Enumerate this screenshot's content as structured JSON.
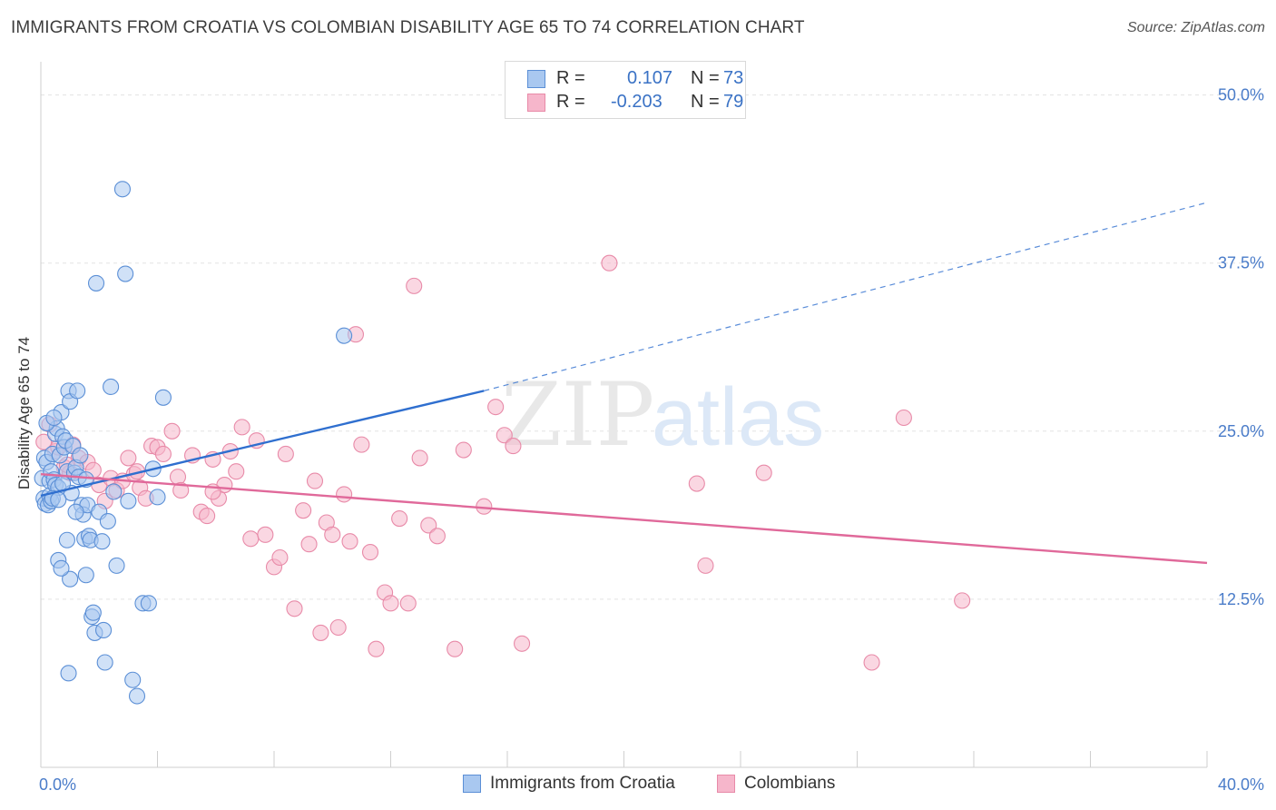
{
  "title": "IMMIGRANTS FROM CROATIA VS COLOMBIAN DISABILITY AGE 65 TO 74 CORRELATION CHART",
  "source": "Source: ZipAtlas.com",
  "watermark": {
    "zip": "ZIP",
    "atlas": "atlas"
  },
  "colors": {
    "blue_fill": "#a9c8f0",
    "blue_stroke": "#5b8fd6",
    "blue_line": "#2f6fcf",
    "pink_fill": "#f6b6cb",
    "pink_stroke": "#e88aa8",
    "pink_line": "#e0699a",
    "tick_label": "#4a7cc9",
    "grid": "#e3e3e3"
  },
  "legend": {
    "rows": [
      {
        "r_label": "R =",
        "r_value": "0.107",
        "n_label": "N =",
        "n_value": "73"
      },
      {
        "r_label": "R =",
        "r_value": "-0.203",
        "n_label": "N =",
        "n_value": "79"
      }
    ]
  },
  "bottom_legend": [
    {
      "label": "Immigrants from Croatia"
    },
    {
      "label": "Colombians"
    }
  ],
  "chart_data": {
    "type": "scatter",
    "title": "IMMIGRANTS FROM CROATIA VS COLOMBIAN DISABILITY AGE 65 TO 74 CORRELATION CHART",
    "xlabel": "",
    "ylabel": "Disability Age 65 to 74",
    "xlim": [
      0,
      40
    ],
    "ylim": [
      0,
      52
    ],
    "x_tick_labels": [
      {
        "value": 0,
        "label": "0.0%"
      },
      {
        "value": 40,
        "label": "40.0%"
      }
    ],
    "x_minor_ticks": [
      0,
      4,
      8,
      12,
      16,
      20,
      24,
      28,
      32,
      36,
      40
    ],
    "y_ticks": [
      {
        "value": 12.5,
        "label": "12.5%"
      },
      {
        "value": 25,
        "label": "25.0%"
      },
      {
        "value": 37.5,
        "label": "37.5%"
      },
      {
        "value": 50,
        "label": "50.0%"
      }
    ],
    "series": [
      {
        "name": "Immigrants from Croatia",
        "R": 0.107,
        "N": 73,
        "trend": {
          "x0": 0,
          "y0": 20.2,
          "x1": 15.2,
          "y1": 28.0,
          "dash_x1": 40,
          "dash_y1": 42.0
        },
        "points": [
          [
            0.05,
            21.5
          ],
          [
            0.1,
            20.0
          ],
          [
            0.12,
            23.0
          ],
          [
            0.15,
            19.6
          ],
          [
            0.2,
            22.7
          ],
          [
            0.25,
            19.5
          ],
          [
            0.3,
            21.3
          ],
          [
            0.3,
            20.2
          ],
          [
            0.35,
            22.0
          ],
          [
            0.35,
            19.8
          ],
          [
            0.4,
            23.3
          ],
          [
            0.45,
            21.4
          ],
          [
            0.5,
            24.8
          ],
          [
            0.5,
            21.0
          ],
          [
            0.55,
            25.2
          ],
          [
            0.6,
            20.8
          ],
          [
            0.65,
            23.2
          ],
          [
            0.7,
            26.4
          ],
          [
            0.75,
            24.6
          ],
          [
            0.8,
            23.8
          ],
          [
            0.85,
            24.3
          ],
          [
            0.9,
            22.0
          ],
          [
            0.95,
            28.0
          ],
          [
            1.0,
            27.2
          ],
          [
            1.05,
            20.4
          ],
          [
            1.1,
            23.9
          ],
          [
            1.15,
            21.9
          ],
          [
            1.2,
            22.3
          ],
          [
            1.25,
            28.0
          ],
          [
            1.3,
            21.6
          ],
          [
            1.4,
            19.5
          ],
          [
            1.45,
            18.8
          ],
          [
            1.5,
            17.0
          ],
          [
            1.55,
            14.3
          ],
          [
            1.6,
            19.5
          ],
          [
            1.65,
            17.2
          ],
          [
            1.7,
            16.9
          ],
          [
            1.75,
            11.2
          ],
          [
            1.8,
            11.5
          ],
          [
            1.85,
            10.0
          ],
          [
            1.9,
            36.0
          ],
          [
            2.0,
            19.0
          ],
          [
            2.1,
            16.8
          ],
          [
            2.15,
            10.2
          ],
          [
            2.2,
            7.8
          ],
          [
            2.3,
            18.3
          ],
          [
            2.4,
            28.3
          ],
          [
            2.5,
            20.5
          ],
          [
            2.6,
            15.0
          ],
          [
            2.8,
            43.0
          ],
          [
            2.9,
            36.7
          ],
          [
            3.0,
            19.8
          ],
          [
            3.15,
            6.5
          ],
          [
            3.3,
            5.3
          ],
          [
            3.5,
            12.2
          ],
          [
            3.7,
            12.2
          ],
          [
            3.85,
            22.2
          ],
          [
            4.0,
            20.1
          ],
          [
            4.2,
            27.5
          ],
          [
            0.6,
            15.4
          ],
          [
            0.9,
            16.9
          ],
          [
            1.0,
            14.0
          ],
          [
            0.7,
            14.8
          ],
          [
            0.95,
            7.0
          ],
          [
            1.35,
            23.2
          ],
          [
            1.55,
            21.4
          ],
          [
            10.4,
            32.1
          ],
          [
            0.4,
            20.0
          ],
          [
            0.2,
            25.6
          ],
          [
            0.6,
            19.9
          ],
          [
            0.75,
            21.1
          ],
          [
            1.2,
            19.0
          ],
          [
            0.45,
            26.0
          ]
        ]
      },
      {
        "name": "Colombians",
        "R": -0.203,
        "N": 79,
        "trend": {
          "x0": 0,
          "y0": 21.8,
          "x1": 40,
          "y1": 15.2
        },
        "points": [
          [
            0.1,
            24.2
          ],
          [
            0.3,
            25.5
          ],
          [
            0.5,
            23.5
          ],
          [
            0.8,
            22.3
          ],
          [
            1.0,
            21.9
          ],
          [
            1.3,
            23.0
          ],
          [
            1.6,
            22.7
          ],
          [
            1.8,
            22.1
          ],
          [
            2.0,
            21.0
          ],
          [
            2.2,
            19.8
          ],
          [
            2.4,
            21.5
          ],
          [
            2.6,
            20.6
          ],
          [
            2.8,
            21.3
          ],
          [
            3.0,
            23.0
          ],
          [
            3.2,
            21.8
          ],
          [
            3.4,
            20.8
          ],
          [
            3.6,
            20.0
          ],
          [
            3.8,
            23.9
          ],
          [
            4.0,
            23.8
          ],
          [
            4.2,
            23.3
          ],
          [
            4.5,
            25.0
          ],
          [
            4.7,
            21.6
          ],
          [
            4.8,
            20.6
          ],
          [
            5.2,
            23.2
          ],
          [
            5.5,
            19.0
          ],
          [
            5.7,
            18.7
          ],
          [
            5.9,
            22.9
          ],
          [
            6.1,
            20.0
          ],
          [
            6.3,
            21.0
          ],
          [
            6.5,
            23.5
          ],
          [
            6.7,
            22.0
          ],
          [
            6.9,
            25.3
          ],
          [
            7.2,
            17.0
          ],
          [
            7.4,
            24.3
          ],
          [
            7.7,
            17.3
          ],
          [
            8.0,
            14.9
          ],
          [
            8.2,
            15.6
          ],
          [
            8.4,
            23.3
          ],
          [
            8.7,
            11.8
          ],
          [
            9.0,
            19.1
          ],
          [
            9.2,
            16.6
          ],
          [
            9.4,
            21.3
          ],
          [
            9.6,
            10.0
          ],
          [
            9.8,
            18.2
          ],
          [
            10.0,
            17.3
          ],
          [
            10.2,
            10.4
          ],
          [
            10.4,
            20.3
          ],
          [
            10.6,
            16.8
          ],
          [
            10.8,
            32.2
          ],
          [
            11.0,
            24.0
          ],
          [
            11.3,
            16.0
          ],
          [
            11.5,
            8.8
          ],
          [
            11.8,
            13.0
          ],
          [
            12.0,
            12.2
          ],
          [
            12.3,
            18.5
          ],
          [
            12.6,
            12.2
          ],
          [
            12.8,
            35.8
          ],
          [
            13.0,
            23.0
          ],
          [
            13.3,
            18.0
          ],
          [
            13.6,
            17.2
          ],
          [
            14.2,
            8.8
          ],
          [
            14.5,
            23.6
          ],
          [
            15.2,
            19.4
          ],
          [
            15.6,
            26.8
          ],
          [
            15.9,
            24.7
          ],
          [
            16.2,
            23.9
          ],
          [
            16.5,
            9.2
          ],
          [
            19.5,
            37.5
          ],
          [
            22.5,
            21.1
          ],
          [
            22.8,
            15.0
          ],
          [
            24.8,
            21.9
          ],
          [
            28.5,
            7.8
          ],
          [
            29.6,
            26.0
          ],
          [
            31.6,
            12.4
          ],
          [
            0.6,
            23.8
          ],
          [
            1.1,
            24.0
          ],
          [
            3.3,
            22.0
          ],
          [
            5.9,
            20.5
          ],
          [
            0.9,
            22.5
          ]
        ]
      }
    ]
  }
}
